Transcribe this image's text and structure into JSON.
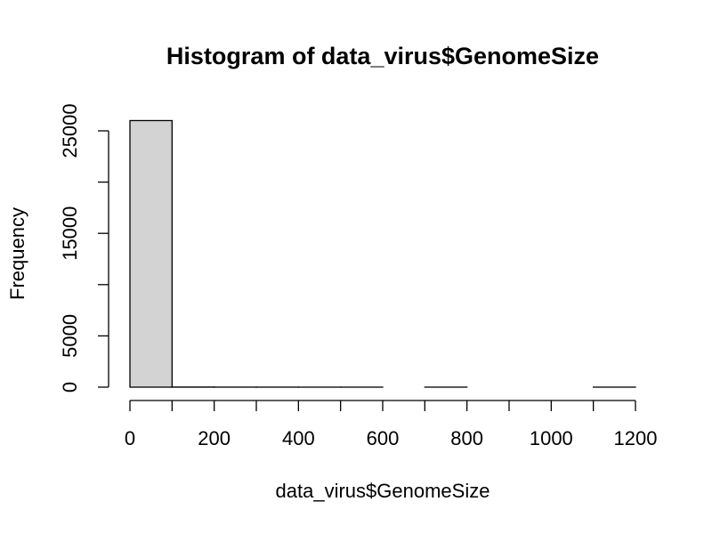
{
  "chart_data": {
    "type": "bar",
    "subtype": "histogram",
    "title": "Histogram of data_virus$GenomeSize",
    "xlabel": "data_virus$GenomeSize",
    "ylabel": "Frequency",
    "bin_edges": [
      0,
      100,
      200,
      300,
      400,
      500,
      600,
      700,
      800,
      900,
      1000,
      1100,
      1200
    ],
    "values": [
      26000,
      12,
      3,
      2,
      1,
      1,
      0,
      1,
      0,
      0,
      0,
      1
    ],
    "xlim": [
      0,
      1200
    ],
    "ylim": [
      0,
      26000
    ],
    "x_ticks": [
      "0",
      "200",
      "400",
      "600",
      "800",
      "1000",
      "1200"
    ],
    "y_ticks": [
      "0",
      "5000",
      "15000",
      "25000"
    ],
    "grid": false,
    "legend": "none",
    "colors": {
      "bar_fill": "#d3d3d3",
      "bar_stroke": "#000000",
      "background": "#ffffff"
    }
  }
}
